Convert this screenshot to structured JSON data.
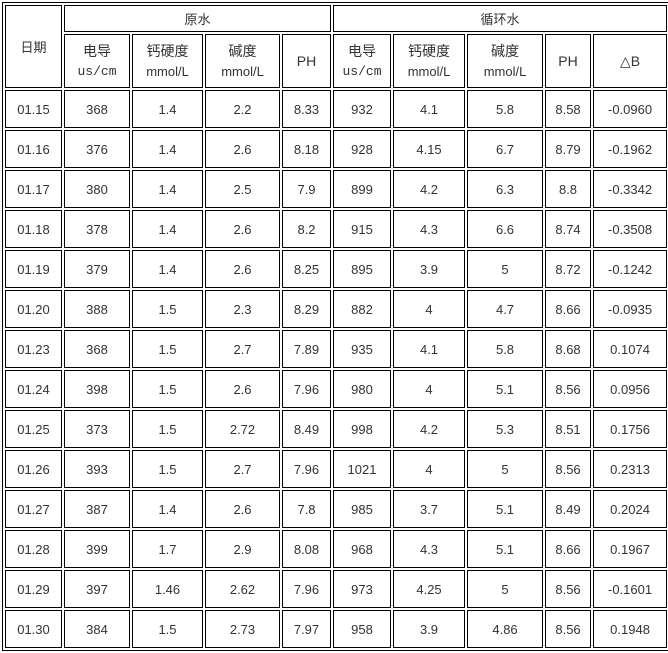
{
  "colors": {
    "border": "#000000",
    "text": "#333333",
    "background": "#ffffff"
  },
  "chart_data": {
    "type": "table",
    "header": {
      "date": "日期",
      "groups": [
        {
          "label": "原水",
          "colspan": 4
        },
        {
          "label": "循环水",
          "colspan": 5
        }
      ],
      "columns": [
        {
          "title": "电导",
          "unit": "us/cm"
        },
        {
          "title": "钙硬度",
          "unit": "mmol/L"
        },
        {
          "title": "碱度",
          "unit": "mmol/L"
        },
        {
          "title": "PH",
          "unit": ""
        },
        {
          "title": "电导",
          "unit": "us/cm"
        },
        {
          "title": "钙硬度",
          "unit": "mmol/L"
        },
        {
          "title": "碱度",
          "unit": "mmol/L"
        },
        {
          "title": "PH",
          "unit": ""
        },
        {
          "title": "△B",
          "unit": ""
        }
      ]
    },
    "rows": [
      {
        "date": "01.15",
        "values": [
          "368",
          "1.4",
          "2.2",
          "8.33",
          "932",
          "4.1",
          "5.8",
          "8.58",
          "-0.0960"
        ]
      },
      {
        "date": "01.16",
        "values": [
          "376",
          "1.4",
          "2.6",
          "8.18",
          "928",
          "4.15",
          "6.7",
          "8.79",
          "-0.1962"
        ]
      },
      {
        "date": "01.17",
        "values": [
          "380",
          "1.4",
          "2.5",
          "7.9",
          "899",
          "4.2",
          "6.3",
          "8.8",
          "-0.3342"
        ]
      },
      {
        "date": "01.18",
        "values": [
          "378",
          "1.4",
          "2.6",
          "8.2",
          "915",
          "4.3",
          "6.6",
          "8.74",
          "-0.3508"
        ]
      },
      {
        "date": "01.19",
        "values": [
          "379",
          "1.4",
          "2.6",
          "8.25",
          "895",
          "3.9",
          "5",
          "8.72",
          "-0.1242"
        ]
      },
      {
        "date": "01.20",
        "values": [
          "388",
          "1.5",
          "2.3",
          "8.29",
          "882",
          "4",
          "4.7",
          "8.66",
          "-0.0935"
        ]
      },
      {
        "date": "01.23",
        "values": [
          "368",
          "1.5",
          "2.7",
          "7.89",
          "935",
          "4.1",
          "5.8",
          "8.68",
          "0.1074"
        ]
      },
      {
        "date": "01.24",
        "values": [
          "398",
          "1.5",
          "2.6",
          "7.96",
          "980",
          "4",
          "5.1",
          "8.56",
          "0.0956"
        ]
      },
      {
        "date": "01.25",
        "values": [
          "373",
          "1.5",
          "2.72",
          "8.49",
          "998",
          "4.2",
          "5.3",
          "8.51",
          "0.1756"
        ]
      },
      {
        "date": "01.26",
        "values": [
          "393",
          "1.5",
          "2.7",
          "7.96",
          "1021",
          "4",
          "5",
          "8.56",
          "0.2313"
        ]
      },
      {
        "date": "01.27",
        "values": [
          "387",
          "1.4",
          "2.6",
          "7.8",
          "985",
          "3.7",
          "5.1",
          "8.49",
          "0.2024"
        ]
      },
      {
        "date": "01.28",
        "values": [
          "399",
          "1.7",
          "2.9",
          "8.08",
          "968",
          "4.3",
          "5.1",
          "8.66",
          "0.1967"
        ]
      },
      {
        "date": "01.29",
        "values": [
          "397",
          "1.46",
          "2.62",
          "7.96",
          "973",
          "4.25",
          "5",
          "8.56",
          "-0.1601"
        ]
      },
      {
        "date": "01.30",
        "values": [
          "384",
          "1.5",
          "2.73",
          "7.97",
          "958",
          "3.9",
          "4.86",
          "8.56",
          "0.1948"
        ]
      }
    ]
  }
}
